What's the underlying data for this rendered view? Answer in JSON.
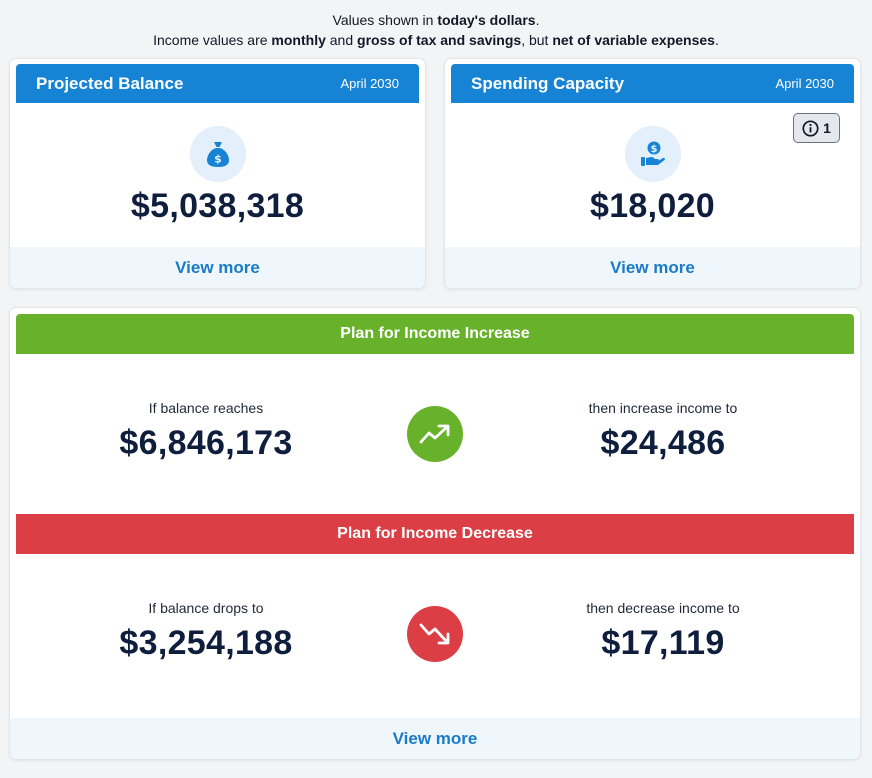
{
  "notes": {
    "line1_pre": "Values shown in ",
    "line1_bold": "today's dollars",
    "line1_post": ".",
    "line2_a": "Income values are ",
    "line2_b": "monthly",
    "line2_c": " and ",
    "line2_d": "gross of tax and savings",
    "line2_e": ", but ",
    "line2_f": "net of variable expenses",
    "line2_g": "."
  },
  "projected": {
    "title": "Projected Balance",
    "date": "April 2030",
    "icon": "money-bag-icon",
    "amount": "$5,038,318",
    "view_more": "View more"
  },
  "spending": {
    "title": "Spending Capacity",
    "date": "April 2030",
    "icon": "hand-dollar-icon",
    "amount": "$18,020",
    "view_more": "View more",
    "info_count": "1"
  },
  "plan": {
    "increase": {
      "title": "Plan for Income Increase",
      "left_label": "If balance reaches",
      "left_value": "$6,846,173",
      "right_label": "then increase income to",
      "right_value": "$24,486",
      "color": "#68b22b"
    },
    "decrease": {
      "title": "Plan for Income Decrease",
      "left_label": "If balance drops to",
      "left_value": "$3,254,188",
      "right_label": "then decrease income to",
      "right_value": "$17,119",
      "color": "#db3f45"
    },
    "view_more": "View more"
  },
  "colors": {
    "header_blue": "#1683d4",
    "link_blue": "#1a7bc6",
    "amount_navy": "#0f1e3d"
  }
}
